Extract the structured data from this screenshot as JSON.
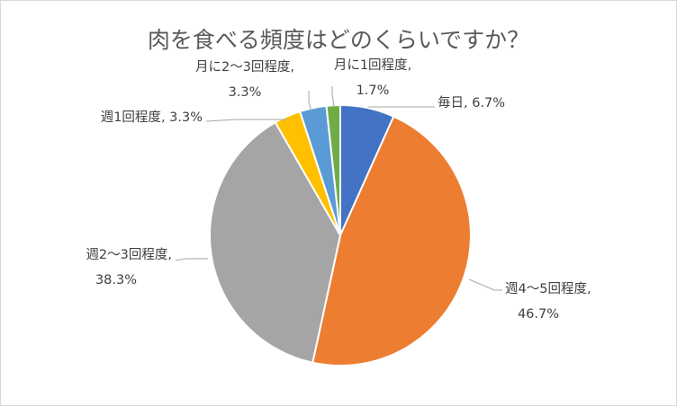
{
  "chart_data": {
    "type": "pie",
    "title": "肉を食べる頻度はどのくらいですか？",
    "slices": [
      {
        "label": "毎日",
        "value": 6.7,
        "pct_label": "6.7%",
        "color": "#4472c4"
      },
      {
        "label": "週4～5回程度",
        "value": 46.7,
        "pct_label": "46.7%",
        "color": "#ed7d31"
      },
      {
        "label": "週2～3回程度",
        "value": 38.3,
        "pct_label": "38.3%",
        "color": "#a5a5a5"
      },
      {
        "label": "週1回程度",
        "value": 3.3,
        "pct_label": "3.3%",
        "color": "#ffc000"
      },
      {
        "label": "月に2～3回程度",
        "value": 3.3,
        "pct_label": "3.3%",
        "color": "#5b9bd5"
      },
      {
        "label": "月に1回程度",
        "value": 1.7,
        "pct_label": "1.7%",
        "color": "#70ad47"
      }
    ]
  }
}
